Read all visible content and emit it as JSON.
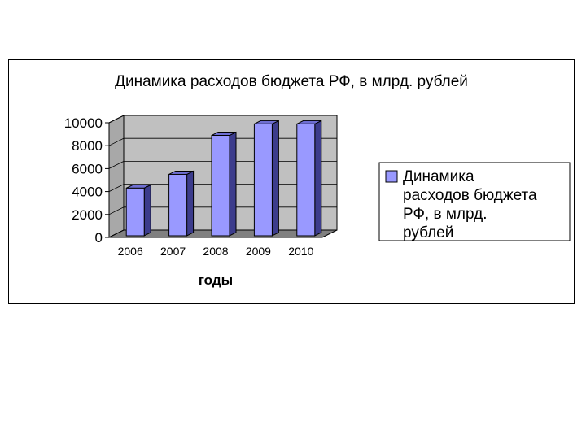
{
  "chart_data": {
    "type": "bar",
    "title": "Динамика расходов бюджета РФ, в млрд. рублей",
    "categories": [
      "2006",
      "2007",
      "2008",
      "2009",
      "2010"
    ],
    "series": [
      {
        "name": "Динамика расходов бюджета РФ, в млрд. рублей",
        "values": [
          4300,
          5500,
          8900,
          9900,
          9900
        ]
      }
    ],
    "xlabel": "годы",
    "ylabel": "",
    "ylim": [
      0,
      10000
    ],
    "yticks": [
      "0",
      "2000",
      "4000",
      "6000",
      "8000",
      "10000"
    ],
    "grid": true,
    "legend_position": "right",
    "three_d": true,
    "colors": {
      "bar_front": "#9999ff",
      "bar_side": "#3c3c8c",
      "bar_top": "#6e6ed2",
      "wall": "#c0c0c0",
      "floor": "#808080",
      "border": "#000000"
    }
  },
  "legend": {
    "lines": [
      "Динамика",
      "расходов бюджета",
      "РФ, в млрд.",
      "рублей"
    ]
  }
}
